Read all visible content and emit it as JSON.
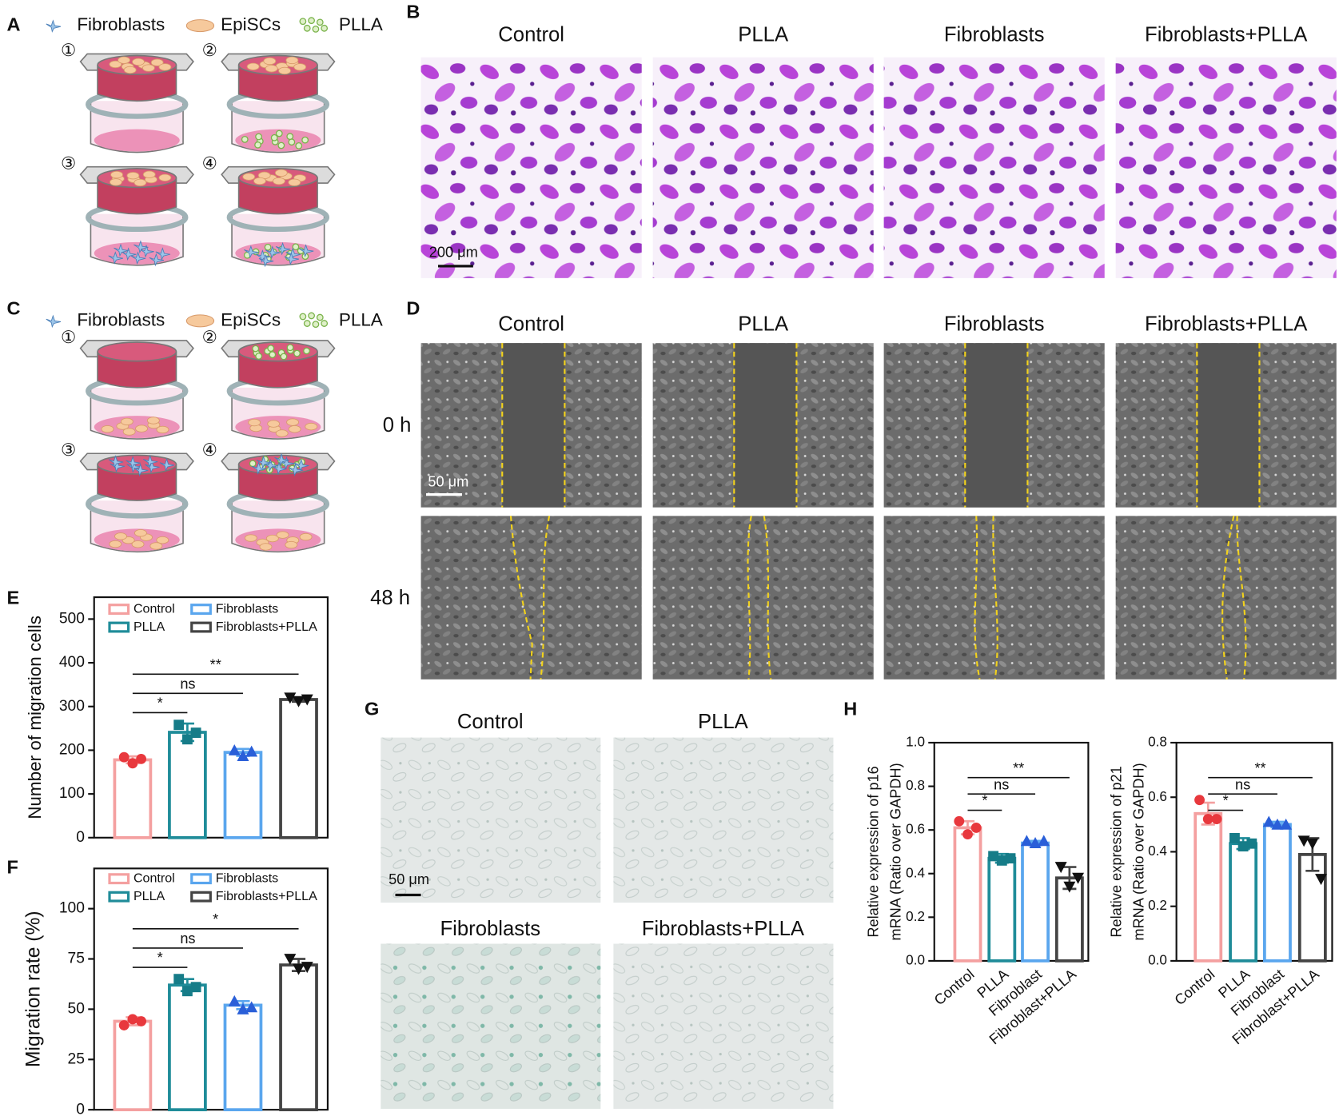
{
  "panels": {
    "A": {
      "letter": "A",
      "legend": [
        "Fibroblasts",
        "EpiSCs",
        "PLLA"
      ],
      "wells": [
        "①",
        "②",
        "③",
        "④"
      ]
    },
    "B": {
      "letter": "B",
      "groups": [
        "Control",
        "PLLA",
        "Fibroblasts",
        "Fibroblasts+PLLA"
      ],
      "scale_bar": "200 μm"
    },
    "C": {
      "letter": "C",
      "legend": [
        "Fibroblasts",
        "EpiSCs",
        "PLLA"
      ],
      "wells": [
        "①",
        "②",
        "③",
        "④"
      ]
    },
    "D": {
      "letter": "D",
      "groups": [
        "Control",
        "PLLA",
        "Fibroblasts",
        "Fibroblasts+PLLA"
      ],
      "rows": [
        "0 h",
        "48 h"
      ],
      "scale_bar": "50 μm"
    },
    "G": {
      "letter": "G",
      "groups": [
        "Control",
        "PLLA",
        "Fibroblasts",
        "Fibroblasts+PLLA"
      ],
      "scale_bar": "50 μm"
    },
    "H": {
      "letter": "H"
    }
  },
  "chart_data": [
    {
      "type": "bar",
      "panel": "E",
      "ylabel": [
        "Number of migration cells"
      ],
      "categories": [
        "Control",
        "PLLA",
        "Fibroblasts",
        "Fibroblasts+PLLA"
      ],
      "values": [
        178,
        241,
        195,
        316
      ],
      "errors": [
        8,
        20,
        8,
        5
      ],
      "points": [
        [
          184,
          170,
          180
        ],
        [
          258,
          225,
          240
        ],
        [
          200,
          187,
          197
        ],
        [
          320,
          312,
          316
        ]
      ],
      "colors": [
        "#f4a0a0",
        "#1f8c99",
        "#5aa6ee",
        "#444444"
      ],
      "point_colors": [
        "#e8383d",
        "#167c88",
        "#2a5fd8",
        "#111111"
      ],
      "ylim": [
        0,
        550
      ],
      "yticks": [
        0,
        100,
        200,
        300,
        400,
        500
      ],
      "legend": true,
      "significance": [
        {
          "label": "*",
          "between": [
            "Control",
            "PLLA"
          ]
        },
        {
          "label": "ns",
          "between": [
            "Control",
            "Fibroblasts"
          ]
        },
        {
          "label": "**",
          "between": [
            "Control",
            "Fibroblasts+PLLA"
          ]
        }
      ]
    },
    {
      "type": "bar",
      "panel": "F",
      "ylabel": [
        "Migration rate (%)"
      ],
      "categories": [
        "Control",
        "PLLA",
        "Fibroblasts",
        "Fibroblasts+PLLA"
      ],
      "values": [
        44,
        62,
        52,
        72
      ],
      "errors": [
        2,
        3,
        2,
        3
      ],
      "points": [
        [
          42,
          45,
          44
        ],
        [
          65,
          59,
          61
        ],
        [
          54,
          50,
          51
        ],
        [
          75,
          70,
          71
        ]
      ],
      "colors": [
        "#f4a0a0",
        "#1f8c99",
        "#5aa6ee",
        "#444444"
      ],
      "point_colors": [
        "#e8383d",
        "#167c88",
        "#2a5fd8",
        "#111111"
      ],
      "ylim": [
        0,
        120
      ],
      "yticks": [
        0,
        25,
        50,
        75,
        100
      ],
      "legend": true,
      "significance": [
        {
          "label": "*",
          "between": [
            "Control",
            "PLLA"
          ]
        },
        {
          "label": "ns",
          "between": [
            "Control",
            "Fibroblasts"
          ]
        },
        {
          "label": "*",
          "between": [
            "Control",
            "Fibroblasts+PLLA"
          ]
        }
      ]
    },
    {
      "type": "bar",
      "ylabel": [
        "Relative expression of p16",
        "mRNA (Ratio over GAPDH)"
      ],
      "categories": [
        "Control",
        "PLLA",
        "Fibroblast",
        "Fibroblast+PLLA"
      ],
      "values": [
        0.61,
        0.47,
        0.54,
        0.38
      ],
      "errors": [
        0.03,
        0.02,
        0.01,
        0.05
      ],
      "points": [
        [
          0.64,
          0.58,
          0.61
        ],
        [
          0.48,
          0.46,
          0.47
        ],
        [
          0.55,
          0.54,
          0.55
        ],
        [
          0.43,
          0.34,
          0.38
        ]
      ],
      "colors": [
        "#f4a0a0",
        "#1f8c99",
        "#5aa6ee",
        "#444444"
      ],
      "point_colors": [
        "#e8383d",
        "#167c88",
        "#2a5fd8",
        "#111111"
      ],
      "ylim": [
        0,
        1
      ],
      "yticks": [
        {
          "value": 0,
          "label": "0.0"
        },
        0.2,
        0.4,
        0.6,
        0.8,
        {
          "value": 1,
          "label": "1.0"
        }
      ],
      "legend": false,
      "significance": [
        {
          "label": "*",
          "between": [
            "Control",
            "PLLA"
          ]
        },
        {
          "label": "ns",
          "between": [
            "Control",
            "Fibroblast"
          ]
        },
        {
          "label": "**",
          "between": [
            "Control",
            "Fibroblast+PLLA"
          ]
        }
      ]
    },
    {
      "type": "bar",
      "ylabel": [
        "Relative expression of p21",
        "mRNA (Ratio over GAPDH)"
      ],
      "categories": [
        "Control",
        "PLLA",
        "Fibroblast",
        "Fibroblast+PLLA"
      ],
      "values": [
        0.54,
        0.43,
        0.5,
        0.39
      ],
      "errors": [
        0.04,
        0.02,
        0.01,
        0.06
      ],
      "points": [
        [
          0.59,
          0.52,
          0.52
        ],
        [
          0.45,
          0.42,
          0.43
        ],
        [
          0.51,
          0.5,
          0.5
        ],
        [
          0.44,
          0.43,
          0.3
        ]
      ],
      "colors": [
        "#f4a0a0",
        "#1f8c99",
        "#5aa6ee",
        "#444444"
      ],
      "point_colors": [
        "#e8383d",
        "#167c88",
        "#2a5fd8",
        "#111111"
      ],
      "ylim": [
        0,
        0.8
      ],
      "yticks": [
        {
          "value": 0,
          "label": "0.0"
        },
        0.2,
        0.4,
        0.6,
        0.8
      ],
      "legend": false,
      "significance": [
        {
          "label": "*",
          "between": [
            "Control",
            "PLLA"
          ]
        },
        {
          "label": "ns",
          "between": [
            "Control",
            "Fibroblast"
          ]
        },
        {
          "label": "**",
          "between": [
            "Control",
            "Fibroblast+PLLA"
          ]
        }
      ]
    }
  ]
}
